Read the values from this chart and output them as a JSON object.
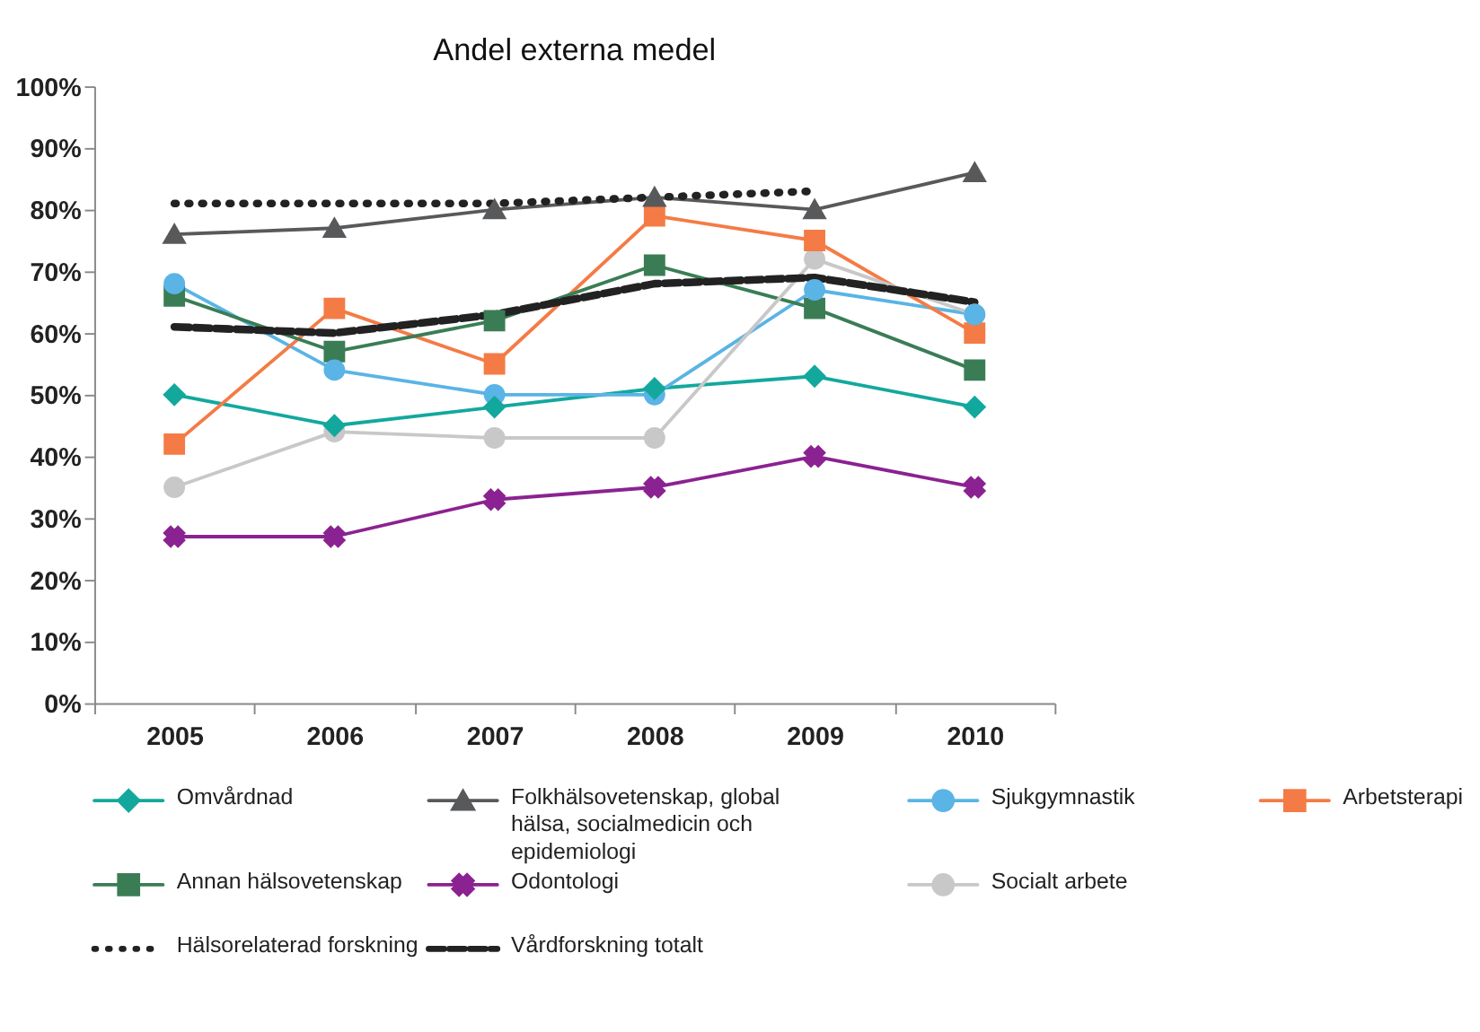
{
  "chart_data": {
    "type": "line",
    "title": "Andel externa medel",
    "categories": [
      "2005",
      "2006",
      "2007",
      "2008",
      "2009",
      "2010"
    ],
    "ylim": [
      0,
      100
    ],
    "yticks": [
      {
        "value": 0,
        "label": "0%"
      },
      {
        "value": 10,
        "label": "10%"
      },
      {
        "value": 20,
        "label": "20%"
      },
      {
        "value": 30,
        "label": "30%"
      },
      {
        "value": 40,
        "label": "40%"
      },
      {
        "value": 50,
        "label": "50%"
      },
      {
        "value": 60,
        "label": "60%"
      },
      {
        "value": 70,
        "label": "70%"
      },
      {
        "value": 80,
        "label": "80%"
      },
      {
        "value": 90,
        "label": "90%"
      },
      {
        "value": 100,
        "label": "100%"
      }
    ],
    "grid": false,
    "legend": "bottom",
    "series": [
      {
        "name": "Omvårdnad",
        "color": "#13a89e",
        "marker": "diamond",
        "line_style": "solid",
        "values": [
          50,
          45,
          48,
          51,
          53,
          48
        ]
      },
      {
        "name": "Folkhälsovetenskap, global hälsa, socialmedicin och epidemiologi",
        "color": "#58595b",
        "marker": "triangle",
        "line_style": "solid",
        "values": [
          76,
          77,
          80,
          82,
          80,
          86
        ]
      },
      {
        "name": "Sjukgymnastik",
        "color": "#5ab4e5",
        "marker": "circle",
        "line_style": "solid",
        "values": [
          68,
          54,
          50,
          50,
          67,
          63
        ]
      },
      {
        "name": "Arbetsterapi",
        "color": "#f47b45",
        "marker": "square",
        "line_style": "solid",
        "values": [
          42,
          64,
          55,
          79,
          75,
          60
        ]
      },
      {
        "name": "Annan hälsovetenskap",
        "color": "#3a7d55",
        "marker": "square",
        "line_style": "solid",
        "values": [
          66,
          57,
          62,
          71,
          64,
          54
        ]
      },
      {
        "name": "Odontologi",
        "color": "#8b2291",
        "marker": "cross",
        "line_style": "solid",
        "values": [
          27,
          27,
          33,
          35,
          40,
          35
        ]
      },
      {
        "name": "Socialt arbete",
        "color": "#c8c8c8",
        "marker": "circle",
        "line_style": "solid",
        "values": [
          35,
          44,
          43,
          43,
          72,
          63
        ]
      },
      {
        "name": "Hälsorelaterad forskning",
        "color": "#222222",
        "marker": "none",
        "line_style": "dotted",
        "values": [
          81,
          81,
          81,
          82,
          83,
          null
        ]
      },
      {
        "name": "Vårdforskning totalt",
        "color": "#222222",
        "marker": "none",
        "line_style": "dashed",
        "values": [
          61,
          60,
          63,
          68,
          69,
          65
        ]
      }
    ]
  }
}
